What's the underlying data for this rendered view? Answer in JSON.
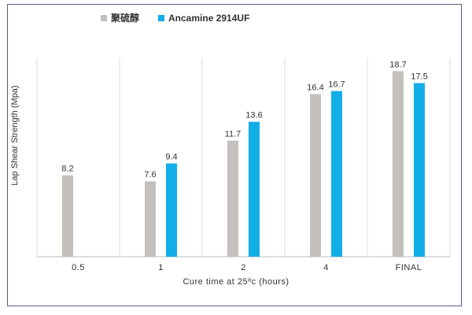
{
  "chart_data": {
    "type": "bar",
    "categories": [
      "0.5",
      "1",
      "2",
      "4",
      "FINAL"
    ],
    "series": [
      {
        "name": "聚硫醇",
        "values": [
          8.2,
          7.6,
          11.7,
          16.4,
          18.7
        ],
        "color": "#c4c1bc"
      },
      {
        "name": "Ancamine 2914UF",
        "values": [
          null,
          9.4,
          13.6,
          16.7,
          17.5
        ],
        "color": "#12aee8"
      }
    ],
    "title": "",
    "xlabel": "Cure time at 25ºc (hours)",
    "ylabel": "Lap Shear Strength (Mpa)",
    "ylim": [
      0,
      20
    ],
    "grid": "vertical category separators",
    "legend_position": "top-left"
  }
}
